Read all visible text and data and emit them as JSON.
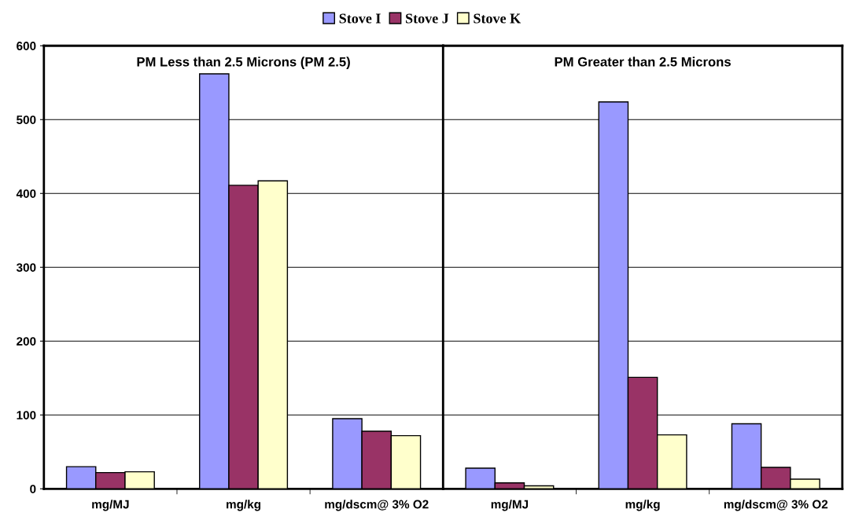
{
  "chart_data": [
    {
      "type": "bar",
      "title": "PM Less than 2.5 Microns (PM 2.5)",
      "categories": [
        "mg/MJ",
        "mg/kg",
        "mg/dscm@ 3% O2"
      ],
      "series": [
        {
          "name": "Stove I",
          "color": "#9999ff",
          "values": [
            30,
            562,
            95
          ]
        },
        {
          "name": "Stove J",
          "color": "#993366",
          "values": [
            22,
            411,
            78
          ]
        },
        {
          "name": "Stove K",
          "color": "#ffffcc",
          "values": [
            23,
            417,
            72
          ]
        }
      ],
      "ylim": [
        0,
        600
      ],
      "yticks": [
        0,
        100,
        200,
        300,
        400,
        500,
        600
      ],
      "grid": "y",
      "legend": "top"
    },
    {
      "type": "bar",
      "title": "PM Greater than 2.5 Microns",
      "categories": [
        "mg/MJ",
        "mg/kg",
        "mg/dscm@ 3% O2"
      ],
      "series": [
        {
          "color": "#9999ff",
          "values": [
            28,
            524,
            88
          ]
        },
        {
          "color": "#993366",
          "values": [
            8,
            151,
            29
          ]
        },
        {
          "color": "#ffffcc",
          "values": [
            4,
            73,
            13
          ]
        }
      ],
      "ylim": [
        0,
        600
      ],
      "yticks": [
        0,
        100,
        200,
        300,
        400,
        500,
        600
      ],
      "grid": "y",
      "tick_labels": "x"
    }
  ]
}
